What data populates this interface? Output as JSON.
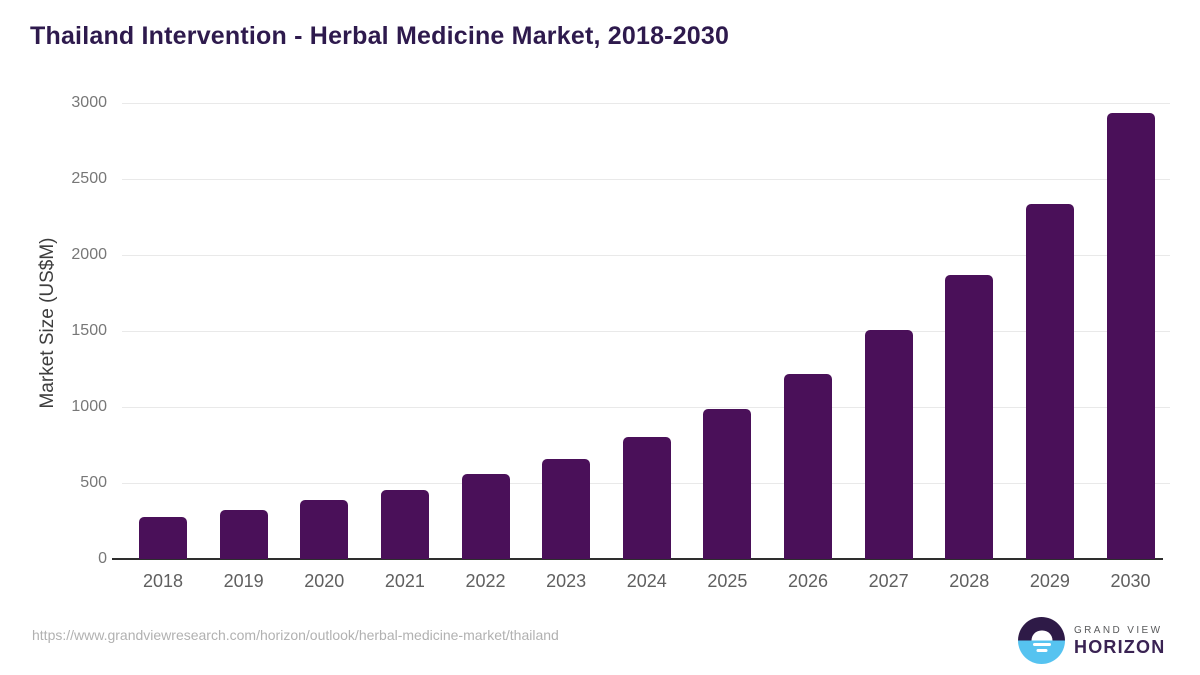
{
  "page": {
    "title": "Thailand Intervention - Herbal Medicine Market, 2018-2030",
    "source_url": "https://www.grandviewresearch.com/horizon/outlook/herbal-medicine-market/thailand",
    "brand": {
      "line1": "GRAND VIEW",
      "line2": "HORIZON"
    }
  },
  "colors": {
    "bar": "#4a1059",
    "title": "#2e1a4d",
    "axis_label": "#3d3d3d",
    "tick_label": "#777777",
    "x_label": "#5f5f5f",
    "gridline": "#e9e9e9",
    "baseline": "#2e2e2e",
    "url": "#b1b1b1",
    "brand_line1": "#58595b",
    "brand_line2": "#3a2353",
    "logo_dark": "#2e1a47",
    "logo_blue": "#56c3f0"
  },
  "chart_data": {
    "type": "bar",
    "title": "Thailand Intervention - Herbal Medicine Market, 2018-2030",
    "categories": [
      "2018",
      "2019",
      "2020",
      "2021",
      "2022",
      "2023",
      "2024",
      "2025",
      "2026",
      "2027",
      "2028",
      "2029",
      "2030"
    ],
    "values": [
      275,
      320,
      385,
      455,
      560,
      660,
      800,
      985,
      1215,
      1505,
      1870,
      2335,
      2935
    ],
    "xlabel": "",
    "ylabel": "Market Size (US$M)",
    "ylim": [
      0,
      3000
    ],
    "yticks": [
      0,
      500,
      1000,
      1500,
      2000,
      2500,
      3000
    ],
    "grid": "horizontal",
    "legend": "none",
    "bar_color": "#4a1059"
  }
}
